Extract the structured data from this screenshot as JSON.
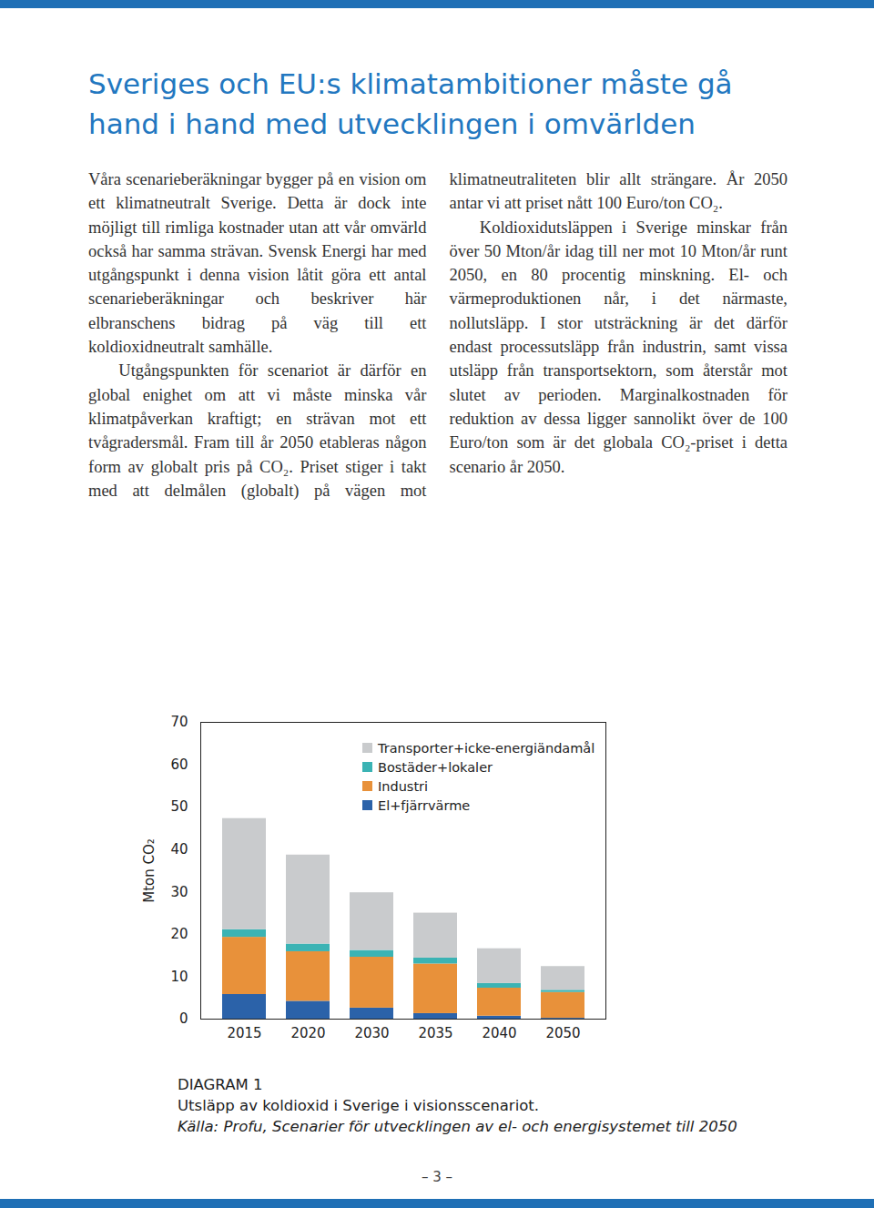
{
  "title_lines": [
    "Sveriges och EU:s klimatambitioner måste gå",
    "hand i hand med utvecklingen i omvärlden"
  ],
  "paragraphs": [
    "Våra scenarieberäkningar bygger på en vision om ett klimatneutralt Sverige. Detta är dock inte möjligt till rimliga kostnader utan att vår omvärld också har samma strävan. Svensk Energi har med utgångspunkt i denna vision låtit göra ett antal scenarieberäkningar och beskriver här elbranschens bidrag på väg till ett koldioxidneutralt samhälle.",
    "Utgångspunkten för scenariot är därför en global enighet om att vi måste minska vår klimatpåverkan kraftigt; en strävan mot ett tvågradersmål. Fram till år 2050 etableras någon form av globalt pris på CO₂. Priset stiger i takt med att delmålen (globalt) på vägen mot klimatneutraliteten blir allt strängare. År 2050 antar vi att priset nått 100 Euro/ton CO₂.",
    "Koldioxidutsläppen i Sverige minskar från över 50 Mton/år idag till ner mot 10 Mton/år runt 2050, en 80 procentig minskning. El- och värmeproduktionen når, i det närmaste, nollutsläpp. I stor utsträckning är det därför endast processutsläpp från industrin, samt vissa utsläpp från transportsektorn, som återstår mot slutet av perioden. Marginalkostnaden för reduktion av dessa ligger sannolikt över de 100 Euro/ton som är det globala CO₂-priset i detta scenario år 2050."
  ],
  "chart_data": {
    "type": "bar",
    "stacked": true,
    "categories": [
      "2015",
      "2020",
      "2030",
      "2035",
      "2040",
      "2050"
    ],
    "series": [
      {
        "name": "El+fjärrvärme",
        "color": "#2b62a9",
        "values": [
          5.8,
          4.2,
          2.6,
          1.3,
          0.7,
          0.2
        ]
      },
      {
        "name": "Industri",
        "color": "#e8913a",
        "values": [
          13.5,
          11.7,
          12.0,
          11.7,
          6.6,
          6.1
        ]
      },
      {
        "name": "Bostäder+lokaler",
        "color": "#3bb3b4",
        "values": [
          1.8,
          1.8,
          1.6,
          1.4,
          1.1,
          0.5
        ]
      },
      {
        "name": "Transporter+icke-energiändamål",
        "color": "#c9cbcd",
        "values": [
          26.2,
          21.0,
          13.6,
          10.6,
          8.2,
          5.6
        ]
      }
    ],
    "y_label": "Mton CO₂",
    "ylim": [
      0,
      70
    ],
    "yticks": [
      0,
      10,
      20,
      30,
      40,
      50,
      60,
      70
    ],
    "grid": false,
    "legend": "top-right"
  },
  "caption": {
    "label": "DIAGRAM 1",
    "text": "Utsläpp av koldioxid i Sverige i visionsscenariot.",
    "source": "Källa: Profu, Scenarier för utvecklingen av el- och energisystemet till 2050"
  },
  "page_number": "– 3 –"
}
